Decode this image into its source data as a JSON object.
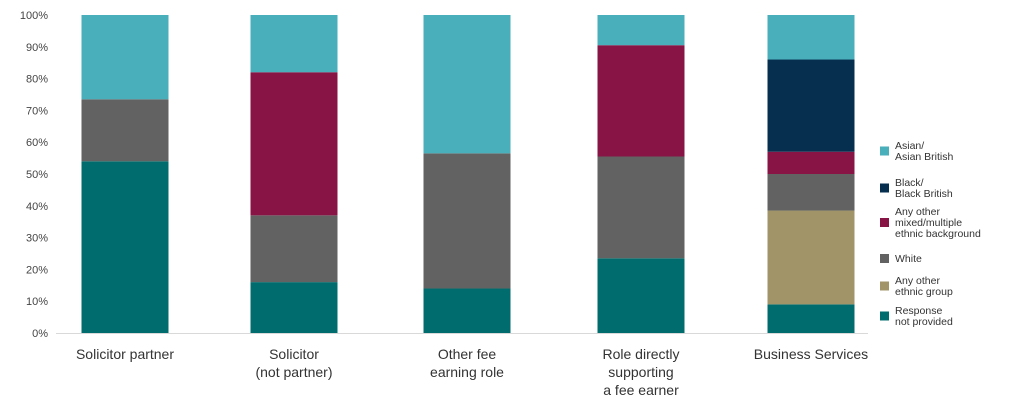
{
  "chart_data": {
    "type": "bar",
    "stacked": true,
    "normalized": true,
    "categories": [
      [
        "Solicitor partner"
      ],
      [
        "Solicitor",
        "(not partner)"
      ],
      [
        "Other fee",
        "earning role"
      ],
      [
        "Role directly",
        "supporting",
        "a fee earner"
      ],
      [
        "Business Services"
      ]
    ],
    "y_ticks": [
      "0%",
      "10%",
      "20%",
      "30%",
      "40%",
      "50%",
      "60%",
      "70%",
      "80%",
      "90%",
      "100%"
    ],
    "ylim": [
      0,
      100
    ],
    "grid": false,
    "legend_position": "right",
    "series": [
      {
        "name": [
          "Response",
          "not provided"
        ],
        "color": "#006c6d",
        "values": [
          54,
          16,
          14,
          23.5,
          9
        ]
      },
      {
        "name": [
          "Any other",
          "ethnic group"
        ],
        "color": "#a09468",
        "values": [
          0,
          0,
          0,
          0,
          29.5
        ]
      },
      {
        "name": [
          "White"
        ],
        "color": "#626263",
        "values": [
          19.5,
          21,
          42.5,
          32,
          11.5
        ]
      },
      {
        "name": [
          "Any other",
          "mixed/multiple",
          "ethnic background"
        ],
        "color": "#871444",
        "values": [
          0,
          45,
          0,
          35,
          7
        ]
      },
      {
        "name": [
          "Black/",
          "Black British"
        ],
        "color": "#062f4f",
        "values": [
          0,
          0,
          0,
          0,
          29
        ]
      },
      {
        "name": [
          "Asian/",
          "Asian British"
        ],
        "color": "#48afbb",
        "values": [
          26.5,
          18,
          43.5,
          9.5,
          14
        ]
      }
    ]
  }
}
